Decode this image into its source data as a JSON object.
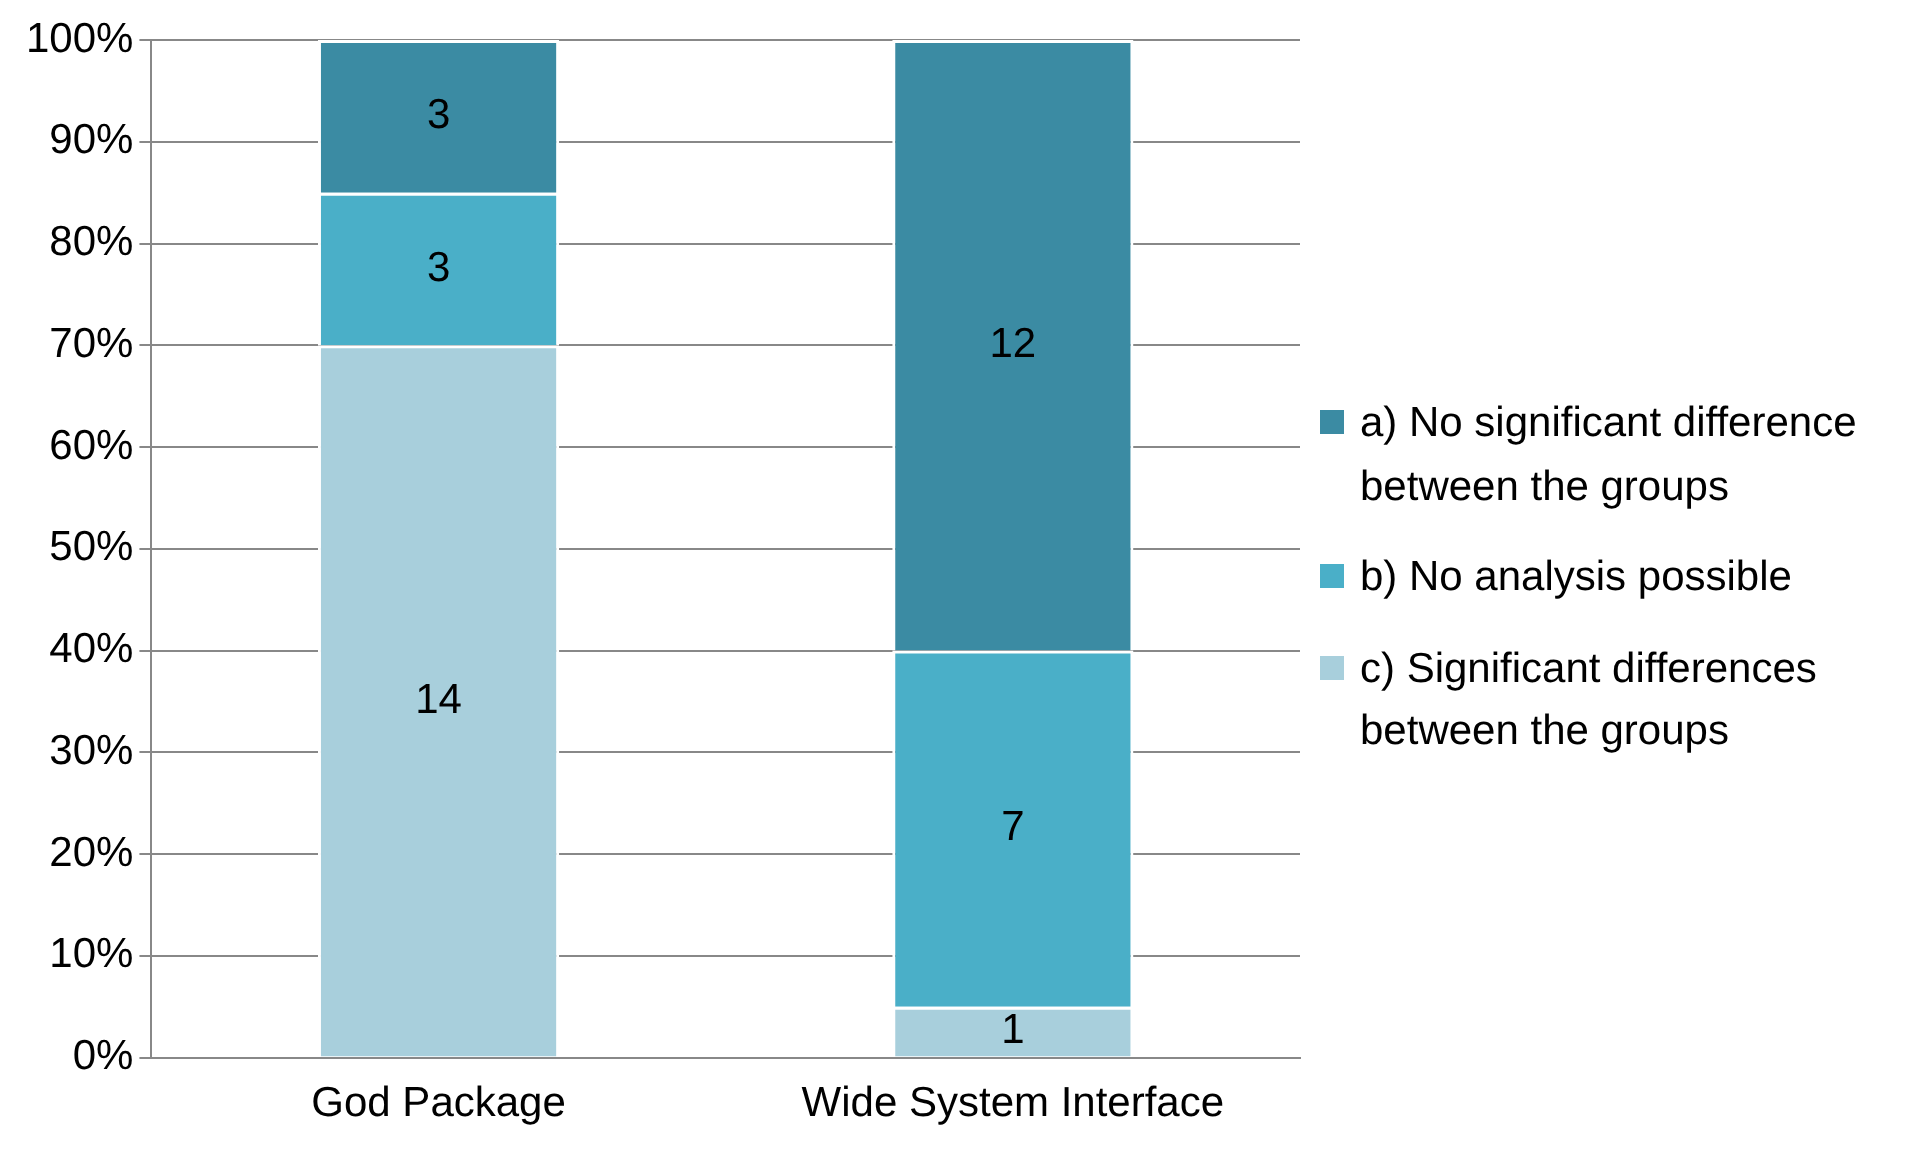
{
  "chart_data": {
    "type": "bar",
    "stacked": true,
    "categories": [
      "God Package",
      "Wide System Interface"
    ],
    "series": [
      {
        "name": "c) Significant differences between the groups",
        "color": "#a8cfdc",
        "values": [
          70,
          5
        ]
      },
      {
        "name": "b) No analysis possible",
        "color": "#4aafc8",
        "values": [
          15,
          35
        ]
      },
      {
        "name": "a) No significant difference between the groups",
        "color": "#3b8ba3",
        "values": [
          15,
          60
        ]
      }
    ],
    "annotations": [
      "14",
      "1",
      "3",
      "7",
      "3",
      "12"
    ],
    "ylim": [
      0,
      100
    ],
    "yticks": [
      {
        "value": 0,
        "label": "0%"
      },
      {
        "value": 10,
        "label": "10%"
      },
      {
        "value": 20,
        "label": "20%"
      },
      {
        "value": 30,
        "label": "30%"
      },
      {
        "value": 40,
        "label": "40%"
      },
      {
        "value": 50,
        "label": "50%"
      },
      {
        "value": 60,
        "label": "60%"
      },
      {
        "value": 70,
        "label": "70%"
      },
      {
        "value": 80,
        "label": "80%"
      },
      {
        "value": 90,
        "label": "90%"
      },
      {
        "value": 100,
        "label": "100%"
      }
    ],
    "grid": "y",
    "legend": "right"
  }
}
